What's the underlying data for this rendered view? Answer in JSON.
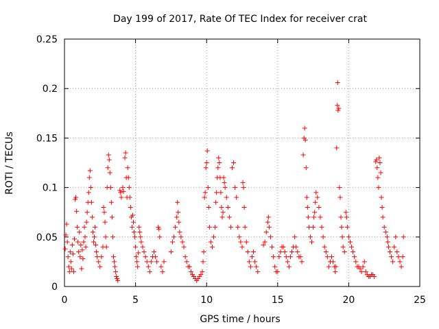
{
  "chart_data": {
    "type": "scatter",
    "title": "Day 199 of 2017, Rate Of TEC Index for receiver crat",
    "xlabel": "GPS time / hours",
    "ylabel": "ROTI / TECUs",
    "xlim": [
      0,
      25
    ],
    "ylim": [
      0,
      0.25
    ],
    "x_ticks": [
      "0",
      "5",
      "10",
      "15",
      "20",
      "25"
    ],
    "x_tick_values": [
      0,
      5,
      10,
      15,
      20,
      25
    ],
    "y_ticks": [
      "0",
      "0.05",
      "0.1",
      "0.15",
      "0.2",
      "0.25"
    ],
    "y_tick_values": [
      0,
      0.05,
      0.1,
      0.15,
      0.2,
      0.25
    ],
    "grid": true,
    "marker": "plus",
    "marker_color": "#ff0000",
    "series": [
      {
        "points": [
          [
            0.05,
            0.038
          ],
          [
            0.1,
            0.052
          ],
          [
            0.15,
            0.063
          ],
          [
            0.2,
            0.045
          ],
          [
            0.25,
            0.03
          ],
          [
            0.3,
            0.02
          ],
          [
            0.35,
            0.015
          ],
          [
            0.4,
            0.035
          ],
          [
            0.45,
            0.025
          ],
          [
            0.5,
            0.018
          ],
          [
            0.55,
            0.042
          ],
          [
            0.6,
            0.033
          ],
          [
            0.65,
            0.015
          ],
          [
            0.7,
            0.048
          ],
          [
            0.75,
            0.088
          ],
          [
            0.8,
            0.09
          ],
          [
            0.85,
            0.076
          ],
          [
            0.9,
            0.06
          ],
          [
            0.95,
            0.045
          ],
          [
            1.0,
            0.035
          ],
          [
            1.05,
            0.055
          ],
          [
            1.1,
            0.03
          ],
          [
            1.15,
            0.042
          ],
          [
            1.2,
            0.018
          ],
          [
            1.25,
            0.037
          ],
          [
            1.3,
            0.028
          ],
          [
            1.35,
            0.045
          ],
          [
            1.4,
            0.06
          ],
          [
            1.45,
            0.05
          ],
          [
            1.5,
            0.04
          ],
          [
            1.55,
            0.065
          ],
          [
            1.6,
            0.075
          ],
          [
            1.65,
            0.085
          ],
          [
            1.7,
            0.095
          ],
          [
            1.75,
            0.11
          ],
          [
            1.8,
            0.117
          ],
          [
            1.85,
            0.1
          ],
          [
            1.9,
            0.085
          ],
          [
            1.95,
            0.07
          ],
          [
            2.0,
            0.055
          ],
          [
            2.05,
            0.045
          ],
          [
            2.1,
            0.05
          ],
          [
            2.15,
            0.06
          ],
          [
            2.2,
            0.042
          ],
          [
            2.25,
            0.035
          ],
          [
            2.3,
            0.03
          ],
          [
            2.4,
            0.025
          ],
          [
            2.5,
            0.02
          ],
          [
            2.6,
            0.03
          ],
          [
            2.7,
            0.04
          ],
          [
            2.75,
            0.08
          ],
          [
            2.8,
            0.075
          ],
          [
            2.85,
            0.065
          ],
          [
            2.9,
            0.05
          ],
          [
            2.95,
            0.04
          ],
          [
            3.0,
            0.1
          ],
          [
            3.05,
            0.12
          ],
          [
            3.1,
            0.133
          ],
          [
            3.15,
            0.128
          ],
          [
            3.2,
            0.115
          ],
          [
            3.25,
            0.1
          ],
          [
            3.3,
            0.085
          ],
          [
            3.35,
            0.07
          ],
          [
            3.4,
            0.05
          ],
          [
            3.45,
            0.03
          ],
          [
            3.5,
            0.025
          ],
          [
            3.55,
            0.02
          ],
          [
            3.6,
            0.015
          ],
          [
            3.65,
            0.01
          ],
          [
            3.7,
            0.008
          ],
          [
            3.75,
            0.006
          ],
          [
            3.9,
            0.097
          ],
          [
            3.95,
            0.095
          ],
          [
            4.0,
            0.09
          ],
          [
            4.1,
            0.1
          ],
          [
            4.15,
            0.096
          ],
          [
            4.25,
            0.13
          ],
          [
            4.3,
            0.135
          ],
          [
            4.35,
            0.11
          ],
          [
            4.4,
            0.09
          ],
          [
            4.45,
            0.12
          ],
          [
            4.5,
            0.11
          ],
          [
            4.55,
            0.1
          ],
          [
            4.6,
            0.09
          ],
          [
            4.65,
            0.08
          ],
          [
            4.7,
            0.07
          ],
          [
            4.75,
            0.06
          ],
          [
            4.8,
            0.072
          ],
          [
            4.85,
            0.065
          ],
          [
            4.9,
            0.055
          ],
          [
            4.95,
            0.05
          ],
          [
            5.0,
            0.04
          ],
          [
            5.05,
            0.03
          ],
          [
            5.1,
            0.025
          ],
          [
            5.15,
            0.02
          ],
          [
            5.2,
            0.034
          ],
          [
            5.25,
            0.06
          ],
          [
            5.3,
            0.055
          ],
          [
            5.35,
            0.05
          ],
          [
            5.4,
            0.045
          ],
          [
            5.5,
            0.04
          ],
          [
            5.6,
            0.035
          ],
          [
            5.7,
            0.03
          ],
          [
            5.8,
            0.025
          ],
          [
            5.9,
            0.02
          ],
          [
            6.0,
            0.015
          ],
          [
            6.1,
            0.025
          ],
          [
            6.2,
            0.03
          ],
          [
            6.3,
            0.035
          ],
          [
            6.4,
            0.03
          ],
          [
            6.5,
            0.025
          ],
          [
            6.6,
            0.06
          ],
          [
            6.65,
            0.058
          ],
          [
            6.7,
            0.05
          ],
          [
            6.8,
            0.02
          ],
          [
            6.9,
            0.015
          ],
          [
            7.0,
            0.025
          ],
          [
            7.5,
            0.035
          ],
          [
            7.6,
            0.045
          ],
          [
            7.7,
            0.05
          ],
          [
            7.8,
            0.06
          ],
          [
            7.9,
            0.07
          ],
          [
            7.95,
            0.085
          ],
          [
            8.0,
            0.075
          ],
          [
            8.05,
            0.065
          ],
          [
            8.1,
            0.055
          ],
          [
            8.2,
            0.05
          ],
          [
            8.3,
            0.045
          ],
          [
            8.4,
            0.04
          ],
          [
            8.5,
            0.03
          ],
          [
            8.6,
            0.025
          ],
          [
            8.7,
            0.02
          ],
          [
            8.8,
            0.02
          ],
          [
            8.9,
            0.015
          ],
          [
            9.0,
            0.012
          ],
          [
            9.1,
            0.01
          ],
          [
            9.2,
            0.008
          ],
          [
            9.3,
            0.006
          ],
          [
            9.4,
            0.008
          ],
          [
            9.5,
            0.01
          ],
          [
            9.6,
            0.012
          ],
          [
            9.7,
            0.015
          ],
          [
            9.75,
            0.025
          ],
          [
            9.8,
            0.035
          ],
          [
            9.85,
            0.09
          ],
          [
            9.9,
            0.095
          ],
          [
            9.95,
            0.12
          ],
          [
            10.0,
            0.125
          ],
          [
            10.05,
            0.137
          ],
          [
            10.1,
            0.1
          ],
          [
            10.15,
            0.08
          ],
          [
            10.2,
            0.06
          ],
          [
            10.3,
            0.045
          ],
          [
            10.4,
            0.04
          ],
          [
            10.5,
            0.05
          ],
          [
            10.6,
            0.06
          ],
          [
            10.65,
            0.085
          ],
          [
            10.7,
            0.095
          ],
          [
            10.75,
            0.11
          ],
          [
            10.8,
            0.12
          ],
          [
            10.85,
            0.13
          ],
          [
            10.9,
            0.125
          ],
          [
            10.95,
            0.11
          ],
          [
            11.0,
            0.095
          ],
          [
            11.05,
            0.08
          ],
          [
            11.1,
            0.07
          ],
          [
            11.15,
            0.075
          ],
          [
            11.2,
            0.11
          ],
          [
            11.25,
            0.105
          ],
          [
            11.3,
            0.1
          ],
          [
            11.4,
            0.09
          ],
          [
            11.5,
            0.08
          ],
          [
            11.6,
            0.07
          ],
          [
            11.7,
            0.06
          ],
          [
            11.8,
            0.12
          ],
          [
            11.9,
            0.125
          ],
          [
            12.0,
            0.1
          ],
          [
            12.1,
            0.09
          ],
          [
            12.2,
            0.06
          ],
          [
            12.3,
            0.05
          ],
          [
            12.4,
            0.045
          ],
          [
            12.5,
            0.04
          ],
          [
            12.55,
            0.105
          ],
          [
            12.6,
            0.1
          ],
          [
            12.65,
            0.08
          ],
          [
            12.7,
            0.06
          ],
          [
            12.8,
            0.045
          ],
          [
            12.9,
            0.035
          ],
          [
            13.0,
            0.025
          ],
          [
            13.1,
            0.02
          ],
          [
            13.2,
            0.03
          ],
          [
            13.3,
            0.035
          ],
          [
            13.4,
            0.025
          ],
          [
            13.5,
            0.02
          ],
          [
            13.6,
            0.015
          ],
          [
            14.0,
            0.042
          ],
          [
            14.1,
            0.045
          ],
          [
            14.2,
            0.055
          ],
          [
            14.3,
            0.065
          ],
          [
            14.35,
            0.07
          ],
          [
            14.4,
            0.06
          ],
          [
            14.5,
            0.05
          ],
          [
            14.6,
            0.04
          ],
          [
            14.7,
            0.03
          ],
          [
            14.8,
            0.02
          ],
          [
            14.9,
            0.015
          ],
          [
            15.0,
            0.015
          ],
          [
            15.1,
            0.03
          ],
          [
            15.2,
            0.035
          ],
          [
            15.3,
            0.04
          ],
          [
            15.4,
            0.04
          ],
          [
            15.5,
            0.035
          ],
          [
            15.6,
            0.03
          ],
          [
            15.7,
            0.025
          ],
          [
            15.8,
            0.02
          ],
          [
            15.9,
            0.03
          ],
          [
            16.0,
            0.035
          ],
          [
            16.1,
            0.04
          ],
          [
            16.2,
            0.05
          ],
          [
            16.3,
            0.04
          ],
          [
            16.4,
            0.035
          ],
          [
            16.5,
            0.03
          ],
          [
            16.6,
            0.03
          ],
          [
            16.7,
            0.025
          ],
          [
            16.8,
            0.133
          ],
          [
            16.85,
            0.15
          ],
          [
            16.9,
            0.16
          ],
          [
            16.95,
            0.148
          ],
          [
            17.0,
            0.12
          ],
          [
            17.05,
            0.09
          ],
          [
            17.1,
            0.08
          ],
          [
            17.15,
            0.07
          ],
          [
            17.2,
            0.06
          ],
          [
            17.3,
            0.05
          ],
          [
            17.4,
            0.045
          ],
          [
            17.5,
            0.06
          ],
          [
            17.55,
            0.07
          ],
          [
            17.6,
            0.075
          ],
          [
            17.65,
            0.085
          ],
          [
            17.7,
            0.095
          ],
          [
            17.8,
            0.09
          ],
          [
            17.9,
            0.08
          ],
          [
            18.0,
            0.07
          ],
          [
            18.1,
            0.06
          ],
          [
            18.2,
            0.05
          ],
          [
            18.3,
            0.04
          ],
          [
            18.4,
            0.035
          ],
          [
            18.5,
            0.03
          ],
          [
            18.6,
            0.02
          ],
          [
            18.7,
            0.025
          ],
          [
            18.8,
            0.03
          ],
          [
            18.9,
            0.025
          ],
          [
            19.0,
            0.02
          ],
          [
            19.05,
            0.015
          ],
          [
            19.1,
            0.02
          ],
          [
            19.15,
            0.14
          ],
          [
            19.2,
            0.183
          ],
          [
            19.22,
            0.206
          ],
          [
            19.25,
            0.178
          ],
          [
            19.3,
            0.18
          ],
          [
            19.35,
            0.1
          ],
          [
            19.4,
            0.09
          ],
          [
            19.45,
            0.07
          ],
          [
            19.5,
            0.06
          ],
          [
            19.55,
            0.05
          ],
          [
            19.6,
            0.04
          ],
          [
            19.7,
            0.035
          ],
          [
            19.8,
            0.075
          ],
          [
            19.85,
            0.07
          ],
          [
            19.9,
            0.06
          ],
          [
            20.0,
            0.05
          ],
          [
            20.1,
            0.045
          ],
          [
            20.2,
            0.04
          ],
          [
            20.3,
            0.035
          ],
          [
            20.4,
            0.03
          ],
          [
            20.5,
            0.025
          ],
          [
            20.6,
            0.02
          ],
          [
            20.7,
            0.02
          ],
          [
            20.8,
            0.018
          ],
          [
            20.9,
            0.015
          ],
          [
            21.0,
            0.02
          ],
          [
            21.1,
            0.025
          ],
          [
            21.2,
            0.015
          ],
          [
            21.3,
            0.012
          ],
          [
            21.4,
            0.01
          ],
          [
            21.5,
            0.01
          ],
          [
            21.6,
            0.012
          ],
          [
            21.7,
            0.012
          ],
          [
            21.8,
            0.01
          ],
          [
            21.9,
            0.126
          ],
          [
            21.95,
            0.128
          ],
          [
            22.0,
            0.12
          ],
          [
            22.05,
            0.11
          ],
          [
            22.1,
            0.1
          ],
          [
            22.15,
            0.13
          ],
          [
            22.2,
            0.125
          ],
          [
            22.25,
            0.115
          ],
          [
            22.3,
            0.09
          ],
          [
            22.35,
            0.08
          ],
          [
            22.4,
            0.07
          ],
          [
            22.5,
            0.06
          ],
          [
            22.6,
            0.055
          ],
          [
            22.7,
            0.05
          ],
          [
            22.75,
            0.045
          ],
          [
            22.8,
            0.04
          ],
          [
            22.9,
            0.035
          ],
          [
            23.0,
            0.03
          ],
          [
            23.1,
            0.025
          ],
          [
            23.2,
            0.04
          ],
          [
            23.3,
            0.05
          ],
          [
            23.4,
            0.035
          ],
          [
            23.5,
            0.03
          ],
          [
            23.6,
            0.025
          ],
          [
            23.7,
            0.02
          ],
          [
            23.8,
            0.03
          ],
          [
            23.85,
            0.05
          ]
        ]
      }
    ]
  }
}
